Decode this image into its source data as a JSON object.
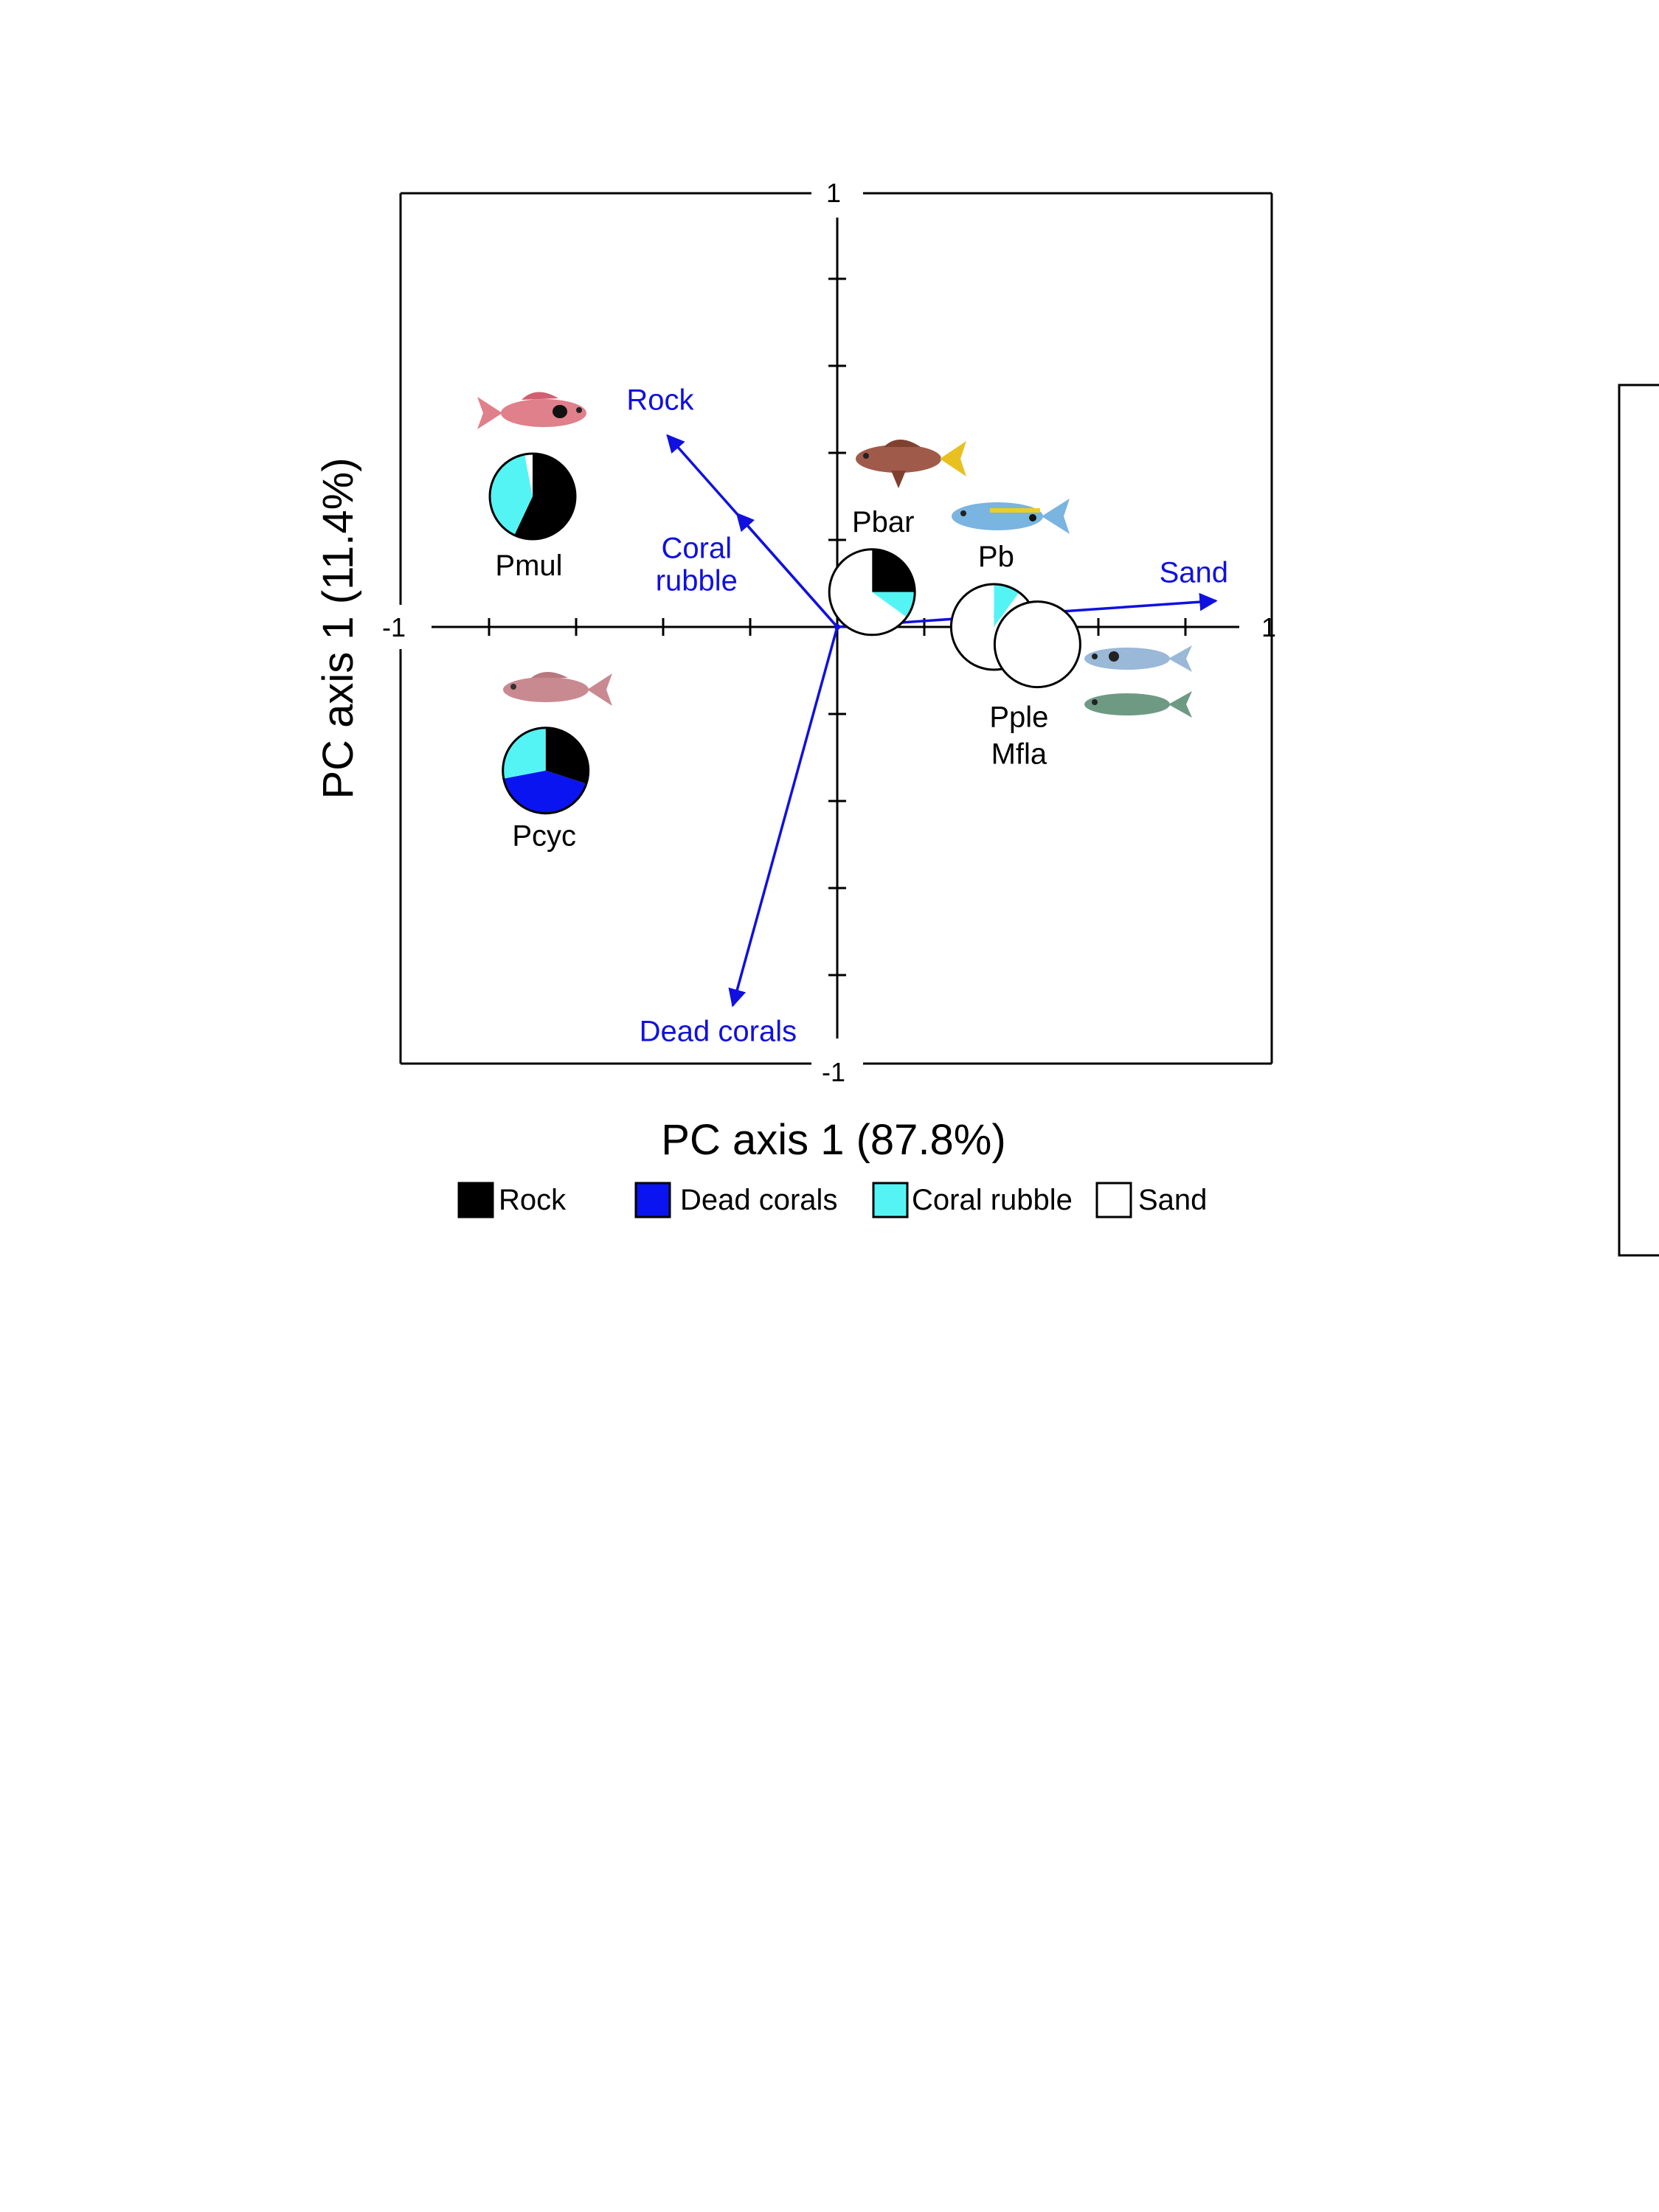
{
  "chart_data": {
    "type": "scatter",
    "subtype": "PCA biplot with pie-chart markers",
    "xlabel": "PC axis 1 (87.8%)",
    "ylabel": "PC axis 1 (11.4%)",
    "xlim": [
      -1,
      1
    ],
    "ylim": [
      -1,
      1
    ],
    "x_tick_labels": {
      "min": "-1",
      "max": "1"
    },
    "y_tick_labels": {
      "min": "-1",
      "max": "1"
    },
    "legend_position": "bottom",
    "legend": [
      {
        "label": "Rock",
        "color": "#000000"
      },
      {
        "label": "Dead corals",
        "color": "#0a14f0"
      },
      {
        "label": "Coral rubble",
        "color": "#55f4f4"
      },
      {
        "label": "Sand",
        "color": "#ffffff"
      }
    ],
    "vector_color": "#1010e0",
    "vectors": [
      {
        "label": "Rock",
        "x": -0.39,
        "y": 0.44
      },
      {
        "label": "Coral rubble",
        "x": -0.23,
        "y": 0.26
      },
      {
        "label": "Dead corals",
        "x": -0.24,
        "y": -0.87
      },
      {
        "label": "Sand",
        "x": 0.87,
        "y": 0.06
      }
    ],
    "points": [
      {
        "label": "Pmul",
        "x": -0.7,
        "y": 0.3,
        "composition": {
          "Rock": 57,
          "Dead corals": 0,
          "Coral rubble": 40,
          "Sand": 3
        }
      },
      {
        "label": "Pcyc",
        "x": -0.67,
        "y": -0.33,
        "composition": {
          "Rock": 30,
          "Dead corals": 42,
          "Coral rubble": 28,
          "Sand": 0
        }
      },
      {
        "label": "Pbar",
        "x": 0.08,
        "y": 0.08,
        "composition": {
          "Rock": 25,
          "Dead corals": 0,
          "Coral rubble": 10,
          "Sand": 65
        }
      },
      {
        "label": "Pb",
        "x": 0.36,
        "y": 0.0,
        "composition": {
          "Rock": 0,
          "Dead corals": 0,
          "Coral rubble": 10,
          "Sand": 90
        }
      },
      {
        "label": "Pple\nMfla",
        "x": 0.46,
        "y": -0.04,
        "composition": {
          "Rock": 0,
          "Dead corals": 0,
          "Coral rubble": 0,
          "Sand": 100
        }
      }
    ]
  }
}
